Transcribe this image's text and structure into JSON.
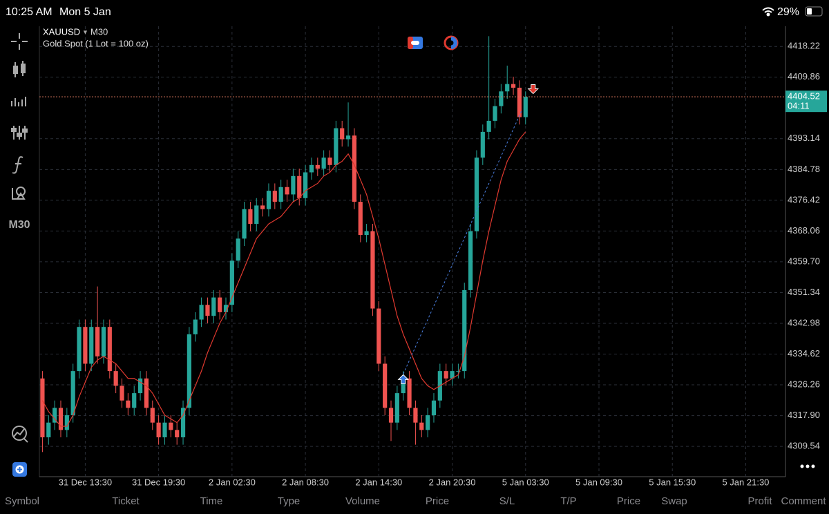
{
  "status_bar": {
    "time": "10:25 AM",
    "date": "Mon 5 Jan",
    "battery": "29%"
  },
  "sidebar": {
    "timeframe": "M30"
  },
  "chart_data": {
    "type": "candlestick",
    "symbol": "XAUUSD",
    "timeframe": "M30",
    "subtitle": "Gold Spot (1 Lot = 100 oz)",
    "open": [
      4328,
      4312,
      4316,
      4320,
      4314,
      4318,
      4330,
      4342,
      4332,
      4342,
      4334,
      4342,
      4330,
      4326,
      4322,
      4320,
      4324,
      4328,
      4320,
      4316,
      4312,
      4316,
      4314,
      4312,
      4320,
      4340,
      4344,
      4348,
      4345,
      4350,
      4346,
      4348,
      4360,
      4366,
      4374,
      4370,
      4375,
      4374,
      4379,
      4376,
      4380,
      4378,
      4383,
      4377,
      4384,
      4386,
      4385,
      4388,
      4386,
      4396,
      4393,
      4394,
      4376,
      4367,
      4368,
      4347,
      4332,
      4320,
      4316,
      4324,
      4328,
      4320,
      4316,
      4314,
      4318,
      4322,
      4330,
      4328,
      4330,
      4330,
      4352,
      4368,
      4388,
      4395,
      4398,
      4402,
      4406,
      4408,
      4407,
      4399
    ],
    "high": [
      4330,
      4318,
      4322,
      4322,
      4320,
      4332,
      4344,
      4344,
      4344,
      4353,
      4344,
      4344,
      4332,
      4328,
      4324,
      4326,
      4330,
      4330,
      4322,
      4318,
      4318,
      4318,
      4316,
      4322,
      4342,
      4346,
      4350,
      4350,
      4352,
      4352,
      4350,
      4362,
      4368,
      4376,
      4376,
      4377,
      4377,
      4381,
      4381,
      4382,
      4382,
      4385,
      4385,
      4386,
      4388,
      4388,
      4390,
      4390,
      4398,
      4398,
      4403,
      4396,
      4378,
      4370,
      4370,
      4349,
      4334,
      4322,
      4326,
      4330,
      4330,
      4322,
      4318,
      4320,
      4324,
      4332,
      4332,
      4332,
      4332,
      4354,
      4370,
      4390,
      4397,
      4421,
      4404,
      4408,
      4413,
      4410,
      4409,
      4406
    ],
    "low": [
      4308,
      4310,
      4314,
      4312,
      4312,
      4316,
      4328,
      4330,
      4330,
      4332,
      4332,
      4328,
      4324,
      4320,
      4318,
      4318,
      4322,
      4318,
      4314,
      4310,
      4310,
      4312,
      4310,
      4310,
      4318,
      4338,
      4342,
      4343,
      4343,
      4344,
      4344,
      4346,
      4358,
      4364,
      4368,
      4368,
      4372,
      4372,
      4374,
      4374,
      4376,
      4376,
      4375,
      4375,
      4382,
      4383,
      4383,
      4384,
      4384,
      4391,
      4391,
      4374,
      4365,
      4365,
      4345,
      4330,
      4318,
      4311,
      4314,
      4322,
      4318,
      4310,
      4312,
      4312,
      4316,
      4320,
      4326,
      4326,
      4328,
      4328,
      4350,
      4366,
      4386,
      4393,
      4396,
      4400,
      4404,
      4405,
      4397,
      4397
    ],
    "close": [
      4312,
      4316,
      4320,
      4314,
      4318,
      4330,
      4342,
      4332,
      4342,
      4334,
      4342,
      4330,
      4326,
      4322,
      4320,
      4324,
      4328,
      4320,
      4316,
      4312,
      4316,
      4314,
      4312,
      4320,
      4340,
      4344,
      4348,
      4345,
      4350,
      4346,
      4348,
      4360,
      4366,
      4374,
      4370,
      4375,
      4374,
      4379,
      4376,
      4380,
      4378,
      4383,
      4377,
      4384,
      4386,
      4385,
      4388,
      4386,
      4396,
      4393,
      4394,
      4376,
      4367,
      4368,
      4347,
      4332,
      4320,
      4316,
      4324,
      4328,
      4320,
      4316,
      4314,
      4318,
      4322,
      4330,
      4328,
      4330,
      4330,
      4352,
      4368,
      4388,
      4395,
      4398,
      4402,
      4406,
      4408,
      4407,
      4399,
      4404.52
    ],
    "up_color": "#26a69a",
    "down_color": "#ef5350",
    "ma_values": [
      4322,
      4319,
      4317,
      4315,
      4315,
      4318,
      4323,
      4327,
      4331,
      4333,
      4334,
      4333,
      4332,
      4330,
      4328,
      4328,
      4327,
      4326,
      4324,
      4321,
      4318,
      4317,
      4316,
      4318,
      4322,
      4326,
      4330,
      4335,
      4339,
      4343,
      4346,
      4350,
      4354,
      4358,
      4362,
      4366,
      4368,
      4370,
      4371,
      4372,
      4374,
      4376,
      4377,
      4379,
      4380,
      4381,
      4383,
      4384,
      4386,
      4387,
      4389,
      4386,
      4382,
      4378,
      4372,
      4366,
      4359,
      4352,
      4345,
      4340,
      4336,
      4332,
      4328,
      4326,
      4325,
      4326,
      4327,
      4328,
      4329,
      4334,
      4342,
      4351,
      4360,
      4368,
      4375,
      4382,
      4387,
      4390,
      4393,
      4395
    ],
    "ma_color": "#e0392f",
    "current_price": 4404.52,
    "countdown": "04:11",
    "trade": {
      "entry_index": 59,
      "entry_price": 4327.7,
      "exit_index": 79,
      "exit_price": 4406.7
    },
    "xlim": [
      -0.5,
      121.5
    ],
    "xticks": [
      {
        "value": 7,
        "label": "31 Dec 13:30"
      },
      {
        "value": 19,
        "label": "31 Dec 19:30"
      },
      {
        "value": 31,
        "label": "2 Jan 02:30"
      },
      {
        "value": 43,
        "label": "2 Jan 08:30"
      },
      {
        "value": 55,
        "label": "2 Jan 14:30"
      },
      {
        "value": 67,
        "label": "2 Jan 20:30"
      },
      {
        "value": 79,
        "label": "5 Jan 03:30"
      },
      {
        "value": 91,
        "label": "5 Jan 09:30"
      },
      {
        "value": 103,
        "label": "5 Jan 15:30"
      },
      {
        "value": 115,
        "label": "5 Jan 21:30"
      }
    ],
    "ylim": [
      4301.3,
      4423.7
    ],
    "yticks": [
      4418.22,
      4409.86,
      4393.14,
      4384.78,
      4376.42,
      4368.06,
      {
        "value": 4359.7,
        "label": "4359.70"
      },
      4351.34,
      4342.98,
      4334.62,
      4326.26,
      {
        "value": 4317.9,
        "label": "4317.90"
      },
      4309.54
    ],
    "grid": true
  },
  "table_header": {
    "columns": [
      "Symbol",
      "Ticket",
      "Time",
      "Type",
      "Volume",
      "Price",
      "S/L",
      "T/P",
      "Price",
      "Swap",
      "Profit",
      "Comment"
    ]
  }
}
